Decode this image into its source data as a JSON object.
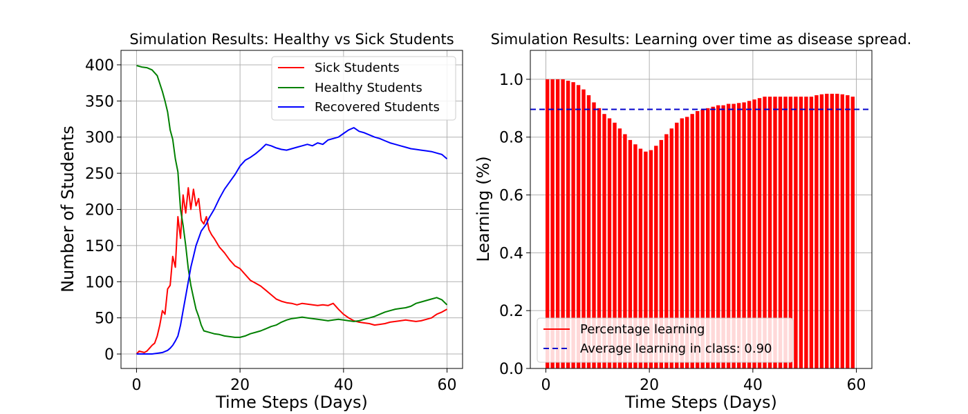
{
  "chart_data": [
    {
      "type": "line",
      "title": "Simulation Results: Healthy vs Sick Students",
      "xlabel": "Time Steps (Days)",
      "ylabel": "Number of Students",
      "xlim": [
        -3,
        63
      ],
      "ylim": [
        -20,
        420
      ],
      "xticks": [
        0,
        20,
        40,
        60
      ],
      "yticks": [
        0,
        50,
        100,
        150,
        200,
        250,
        300,
        350,
        400
      ],
      "grid": true,
      "legend_position": "top-right",
      "series": [
        {
          "name": "Sick Students",
          "color": "#ff0000",
          "x": [
            0,
            0.5,
            1,
            1.5,
            2,
            2.5,
            3,
            3.5,
            4,
            4.5,
            5,
            5.5,
            6,
            6.5,
            7,
            7.5,
            8,
            8.5,
            9,
            9.5,
            10,
            10.5,
            11,
            11.5,
            12,
            12.5,
            13,
            13.5,
            14,
            14.5,
            15,
            16,
            17,
            18,
            19,
            20,
            21,
            22,
            23,
            24,
            25,
            26,
            27,
            28,
            29,
            30,
            31,
            32,
            33,
            34,
            35,
            36,
            37,
            38,
            39,
            40,
            41,
            42,
            43,
            44,
            45,
            46,
            47,
            48,
            49,
            50,
            51,
            52,
            53,
            54,
            55,
            56,
            57,
            58,
            59,
            60
          ],
          "values": [
            0,
            4,
            3,
            2,
            4,
            8,
            12,
            15,
            25,
            40,
            60,
            55,
            90,
            95,
            135,
            120,
            190,
            160,
            220,
            195,
            230,
            200,
            228,
            205,
            215,
            185,
            180,
            190,
            172,
            165,
            160,
            148,
            140,
            130,
            122,
            118,
            110,
            102,
            98,
            94,
            88,
            82,
            76,
            73,
            71,
            70,
            68,
            70,
            69,
            68,
            67,
            68,
            67,
            70,
            62,
            55,
            50,
            46,
            44,
            43,
            42,
            40,
            41,
            42,
            44,
            45,
            46,
            47,
            46,
            45,
            46,
            48,
            50,
            55,
            58,
            62
          ]
        },
        {
          "name": "Healthy Students",
          "color": "#008000",
          "x": [
            0,
            1,
            2,
            3,
            4,
            5,
            5.5,
            6,
            6.5,
            7,
            7.5,
            8,
            8.5,
            9,
            9.5,
            10,
            10.5,
            11,
            11.5,
            12,
            12.5,
            13,
            14,
            15,
            16,
            17,
            18,
            19,
            20,
            21,
            22,
            23,
            24,
            25,
            26,
            27,
            28,
            29,
            30,
            31,
            32,
            33,
            34,
            35,
            36,
            37,
            38,
            39,
            40,
            41,
            42,
            43,
            44,
            45,
            46,
            47,
            48,
            49,
            50,
            51,
            52,
            53,
            54,
            55,
            56,
            57,
            58,
            59,
            60
          ],
          "values": [
            399,
            397,
            396,
            393,
            385,
            363,
            350,
            335,
            310,
            297,
            270,
            252,
            200,
            178,
            150,
            118,
            95,
            78,
            62,
            52,
            40,
            32,
            30,
            28,
            27,
            25,
            24,
            23,
            23,
            25,
            28,
            30,
            32,
            35,
            38,
            40,
            44,
            47,
            49,
            50,
            51,
            50,
            49,
            48,
            47,
            46,
            47,
            48,
            47,
            46,
            45,
            46,
            48,
            50,
            52,
            55,
            58,
            60,
            62,
            63,
            64,
            66,
            70,
            72,
            74,
            76,
            78,
            75,
            68
          ]
        },
        {
          "name": "Recovered Students",
          "color": "#0000ff",
          "x": [
            0,
            1,
            2,
            3,
            4,
            5,
            6,
            6.5,
            7,
            7.5,
            8,
            8.5,
            9,
            9.5,
            10,
            10.5,
            11,
            11.5,
            12,
            12.5,
            13,
            13.5,
            14,
            15,
            16,
            17,
            18,
            19,
            20,
            21,
            22,
            23,
            24,
            25,
            26,
            27,
            28,
            29,
            30,
            31,
            32,
            33,
            34,
            35,
            36,
            37,
            38,
            39,
            40,
            41,
            42,
            43,
            44,
            45,
            46,
            47,
            48,
            49,
            50,
            51,
            52,
            53,
            54,
            55,
            56,
            57,
            58,
            59,
            60
          ],
          "values": [
            0,
            0,
            0,
            0,
            1,
            2,
            5,
            8,
            12,
            18,
            25,
            40,
            60,
            80,
            100,
            120,
            135,
            150,
            160,
            170,
            175,
            180,
            188,
            200,
            215,
            228,
            238,
            248,
            260,
            268,
            272,
            277,
            283,
            290,
            288,
            285,
            283,
            282,
            284,
            286,
            288,
            290,
            288,
            292,
            290,
            296,
            298,
            300,
            305,
            310,
            313,
            308,
            306,
            303,
            300,
            298,
            295,
            292,
            290,
            288,
            286,
            284,
            283,
            282,
            281,
            280,
            278,
            276,
            270
          ]
        }
      ]
    },
    {
      "type": "bar",
      "title": "Simulation Results: Learning over time as disease spread.",
      "xlabel": "Time Steps (Days)",
      "ylabel": "Learning (%)",
      "xlim": [
        -3,
        63
      ],
      "ylim": [
        0,
        1.1
      ],
      "xticks": [
        0,
        20,
        40,
        60
      ],
      "yticks": [
        0.0,
        0.2,
        0.4,
        0.6,
        0.8,
        1.0
      ],
      "grid": true,
      "legend_position": "bottom-left",
      "x": [
        0,
        1,
        2,
        3,
        4,
        5,
        6,
        7,
        8,
        9,
        10,
        11,
        12,
        13,
        14,
        15,
        16,
        17,
        18,
        19,
        20,
        21,
        22,
        23,
        24,
        25,
        26,
        27,
        28,
        29,
        30,
        31,
        32,
        33,
        34,
        35,
        36,
        37,
        38,
        39,
        40,
        41,
        42,
        43,
        44,
        45,
        46,
        47,
        48,
        49,
        50,
        51,
        52,
        53,
        54,
        55,
        56,
        57,
        58,
        59
      ],
      "series": [
        {
          "name": "Percentage learning",
          "color": "#ff0000",
          "values": [
            1.0,
            1.0,
            1.0,
            1.0,
            0.995,
            0.99,
            0.98,
            0.965,
            0.945,
            0.92,
            0.9,
            0.88,
            0.865,
            0.85,
            0.83,
            0.81,
            0.79,
            0.775,
            0.76,
            0.75,
            0.755,
            0.77,
            0.79,
            0.81,
            0.83,
            0.85,
            0.865,
            0.87,
            0.88,
            0.89,
            0.895,
            0.9,
            0.905,
            0.91,
            0.91,
            0.915,
            0.915,
            0.918,
            0.92,
            0.925,
            0.93,
            0.935,
            0.94,
            0.94,
            0.94,
            0.94,
            0.94,
            0.94,
            0.94,
            0.94,
            0.94,
            0.94,
            0.945,
            0.948,
            0.95,
            0.95,
            0.95,
            0.948,
            0.945,
            0.94
          ]
        }
      ],
      "reference_line": {
        "name": "Average learning in class: 0.90",
        "value": 0.896,
        "color": "#0000cc",
        "style": "dashed"
      }
    }
  ]
}
